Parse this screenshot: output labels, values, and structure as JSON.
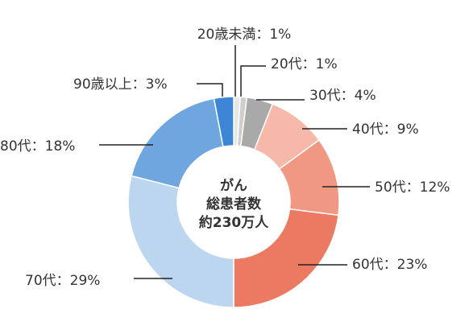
{
  "chart_data": {
    "type": "pie",
    "style": "donut",
    "center_text": [
      "がん",
      "総患者数",
      "約230万人"
    ],
    "slices": [
      {
        "category": "20歳未満",
        "value": 1,
        "label": "20歳未満：1%",
        "color": "#e6e6e6"
      },
      {
        "category": "20代",
        "value": 1,
        "label": "20代：1%",
        "color": "#cfcfcf"
      },
      {
        "category": "30代",
        "value": 4,
        "label": "30代：4%",
        "color": "#a9a9a9"
      },
      {
        "category": "40代",
        "value": 9,
        "label": "40代：9%",
        "color": "#f6b8a8"
      },
      {
        "category": "50代",
        "value": 12,
        "label": "50代：12%",
        "color": "#f09883"
      },
      {
        "category": "60代",
        "value": 23,
        "label": "60代：23%",
        "color": "#ec7a62"
      },
      {
        "category": "70代",
        "value": 29,
        "label": "70代：29%",
        "color": "#bcd6f0"
      },
      {
        "category": "80代",
        "value": 18,
        "label": "80代：18%",
        "color": "#6fa6e0"
      },
      {
        "category": "90歳以上",
        "value": 3,
        "label": "90歳以上：3%",
        "color": "#3d86d6"
      }
    ],
    "legend": "none"
  }
}
